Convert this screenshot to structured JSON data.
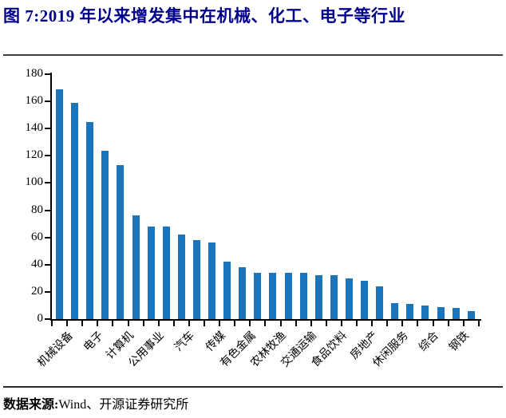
{
  "header": {
    "title": "图 7:2019 年以来增发集中在机械、化工、电子等行业",
    "title_color": "#00008B"
  },
  "footer": {
    "source_label": "数据来源:",
    "source_text": "Wind、开源证券研究所"
  },
  "chart_data": {
    "type": "bar",
    "title": "图 7:2019 年以来增发集中在机械、化工、电子等行业",
    "xlabel": "",
    "ylabel": "",
    "ylim": [
      0,
      180
    ],
    "yticks": [
      0,
      20,
      40,
      60,
      80,
      100,
      120,
      140,
      160,
      180
    ],
    "grid": false,
    "legend": "none",
    "bar_color": "#1B75BC",
    "note": "28 bars sorted descending; x tick labels shown for every other bar",
    "bars": [
      {
        "label": "机械设备",
        "value": 169
      },
      {
        "label": "",
        "value": 159
      },
      {
        "label": "电子",
        "value": 145
      },
      {
        "label": "",
        "value": 124
      },
      {
        "label": "计算机",
        "value": 113
      },
      {
        "label": "",
        "value": 76
      },
      {
        "label": "公用事业",
        "value": 68
      },
      {
        "label": "",
        "value": 68
      },
      {
        "label": "汽车",
        "value": 62
      },
      {
        "label": "",
        "value": 58
      },
      {
        "label": "传媒",
        "value": 56
      },
      {
        "label": "",
        "value": 42
      },
      {
        "label": "有色金属",
        "value": 38
      },
      {
        "label": "",
        "value": 34
      },
      {
        "label": "农林牧渔",
        "value": 34
      },
      {
        "label": "",
        "value": 34
      },
      {
        "label": "交通运输",
        "value": 34
      },
      {
        "label": "",
        "value": 32
      },
      {
        "label": "食品饮料",
        "value": 32
      },
      {
        "label": "",
        "value": 30
      },
      {
        "label": "房地产",
        "value": 28
      },
      {
        "label": "",
        "value": 24
      },
      {
        "label": "休闲服务",
        "value": 12
      },
      {
        "label": "",
        "value": 11
      },
      {
        "label": "综合",
        "value": 10
      },
      {
        "label": "",
        "value": 9
      },
      {
        "label": "钢铁",
        "value": 8
      },
      {
        "label": "",
        "value": 6
      }
    ]
  }
}
